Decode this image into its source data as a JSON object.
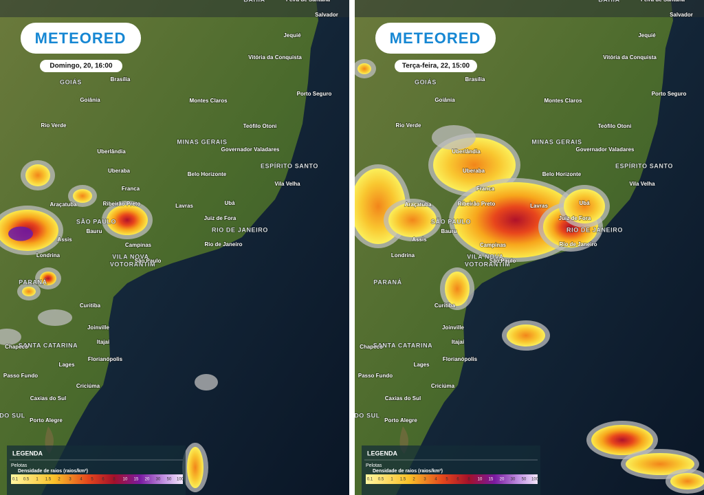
{
  "logo": "METEORED",
  "panels": [
    {
      "date": "Domingo, 20, 16:00"
    },
    {
      "date": "Terça-feira, 22, 15:00"
    }
  ],
  "map_labels": [
    "BAHIA",
    "Feira de Santana",
    "Salvador",
    "Jequié",
    "Vitória da Conquista",
    "GOIÁS",
    "Brasília",
    "Porto Seguro",
    "Goiânia",
    "Montes Claros",
    "Rio Verde",
    "Teófilo Otoni",
    "MINAS GERAIS",
    "Uberlândia",
    "Governador Valadares",
    "ESPÍRITO SANTO",
    "Uberaba",
    "Belo Horizonte",
    "Vila Velha",
    "Franca",
    "Araçatuba",
    "Ribeirão Preto",
    "Lavras",
    "Ubá",
    "SÃO PAULO",
    "Juiz de Fora",
    "RIO DE JANEIRO",
    "Bauru",
    "Assis",
    "Campinas",
    "Rio de Janeiro",
    "Londrina",
    "VILA NOVA",
    "VOTORANTIM",
    "São Paulo",
    "PARANÁ",
    "Curitiba",
    "Joinville",
    "Itajaí",
    "SANTA CATARINA",
    "Chapecó",
    "Florianópolis",
    "Lages",
    "Passo Fundo",
    "Criciúma",
    "Caxias do Sul",
    "DO SUL",
    "Porto Alegre"
  ],
  "legend": {
    "title": "LEGENDA",
    "hail": "Pelotas",
    "density": "Densidade de raios (raios/km²)",
    "scale": [
      0.1,
      0.5,
      1,
      1.5,
      2,
      3,
      4,
      5,
      6,
      8,
      10,
      15,
      20,
      30,
      50,
      100
    ]
  }
}
